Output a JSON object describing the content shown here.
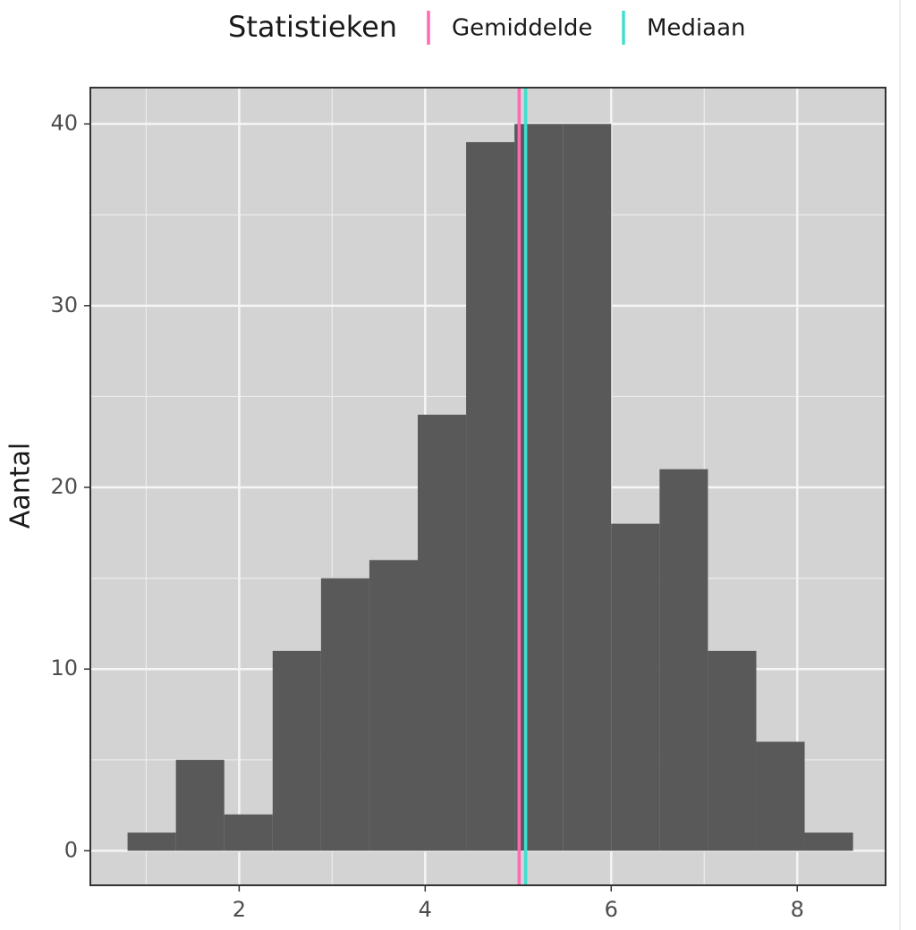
{
  "chart_data": {
    "type": "histogram",
    "legend_title": "Statistieken",
    "ylabel": "Aantal",
    "bins": [
      0.8,
      1.32,
      1.84,
      2.36,
      2.88,
      3.4,
      3.92,
      4.44,
      4.96,
      5.48,
      6.0,
      6.52,
      7.04,
      7.56,
      8.08,
      8.6
    ],
    "values": [
      1,
      5,
      2,
      11,
      15,
      16,
      24,
      39,
      40,
      40,
      18,
      21,
      11,
      6,
      1
    ],
    "color": "#595959",
    "vlines": [
      {
        "name": "Gemiddelde",
        "color": "#ff69b4",
        "value": 5.01
      },
      {
        "name": "Mediaan",
        "color": "#40e0d0",
        "value": 5.08
      }
    ],
    "xlim": [
      0.4,
      8.95
    ],
    "ylim": [
      -1.9,
      42
    ],
    "xticks": [
      2,
      4,
      6,
      8
    ],
    "yticks": [
      0,
      10,
      20,
      30,
      40
    ],
    "grid": true
  }
}
